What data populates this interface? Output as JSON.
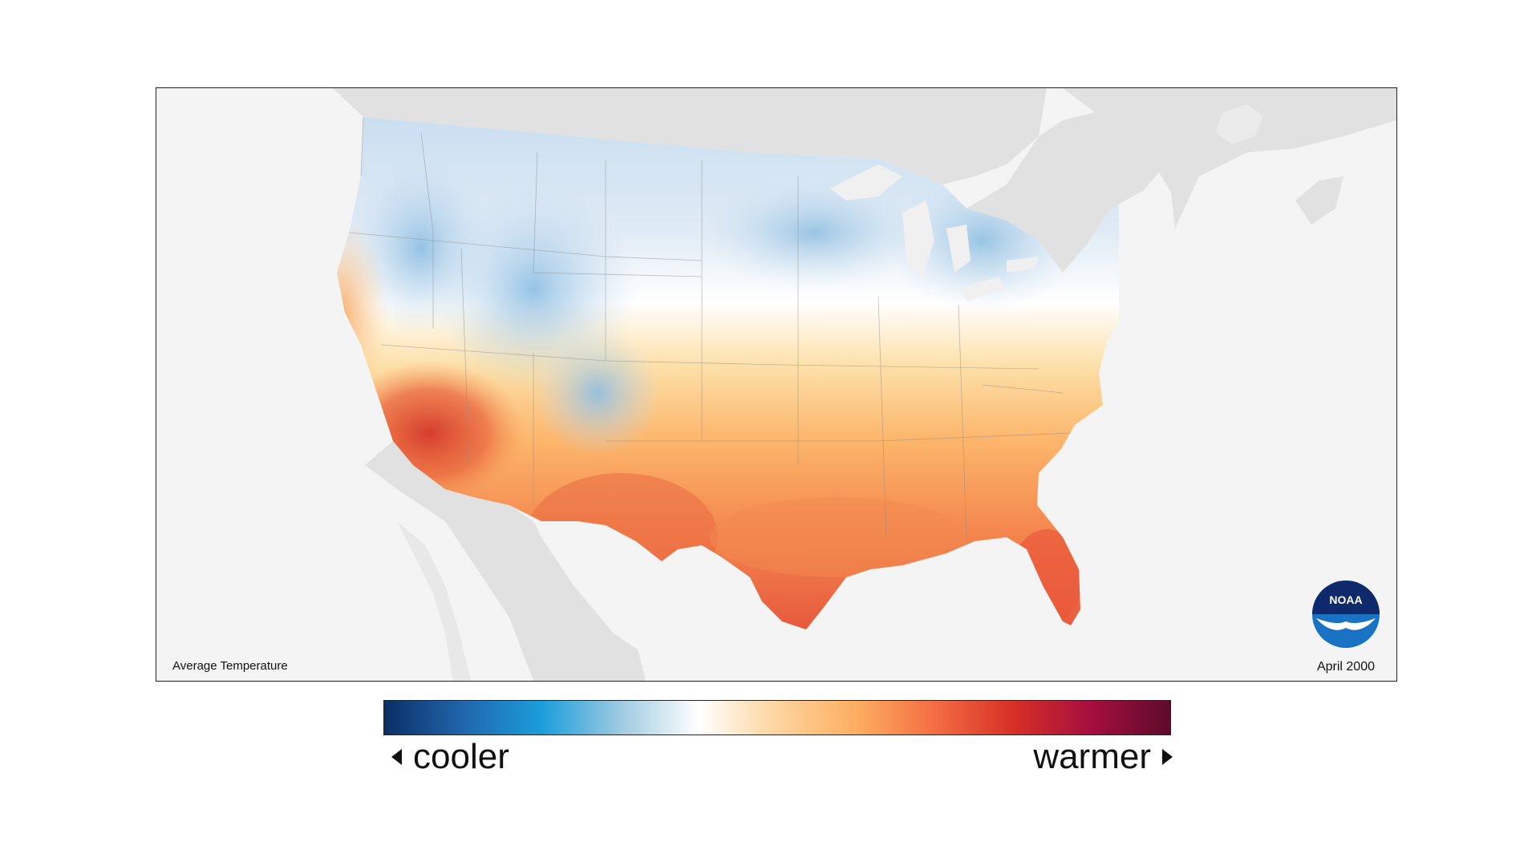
{
  "map": {
    "caption": "Average Temperature",
    "date": "April 2000",
    "logo_text": "NOAA",
    "background_color": "#f4f4f4",
    "land_color": "#e1e1e1"
  },
  "legend": {
    "low_label": "cooler",
    "high_label": "warmer",
    "gradient_colors": [
      "#0a2f66",
      "#2166ac",
      "#1b9ddb",
      "#9ecae1",
      "#ffffff",
      "#fdd49e",
      "#fdae61",
      "#f46d43",
      "#d73027",
      "#a50f3f",
      "#5e0b2b"
    ]
  }
}
